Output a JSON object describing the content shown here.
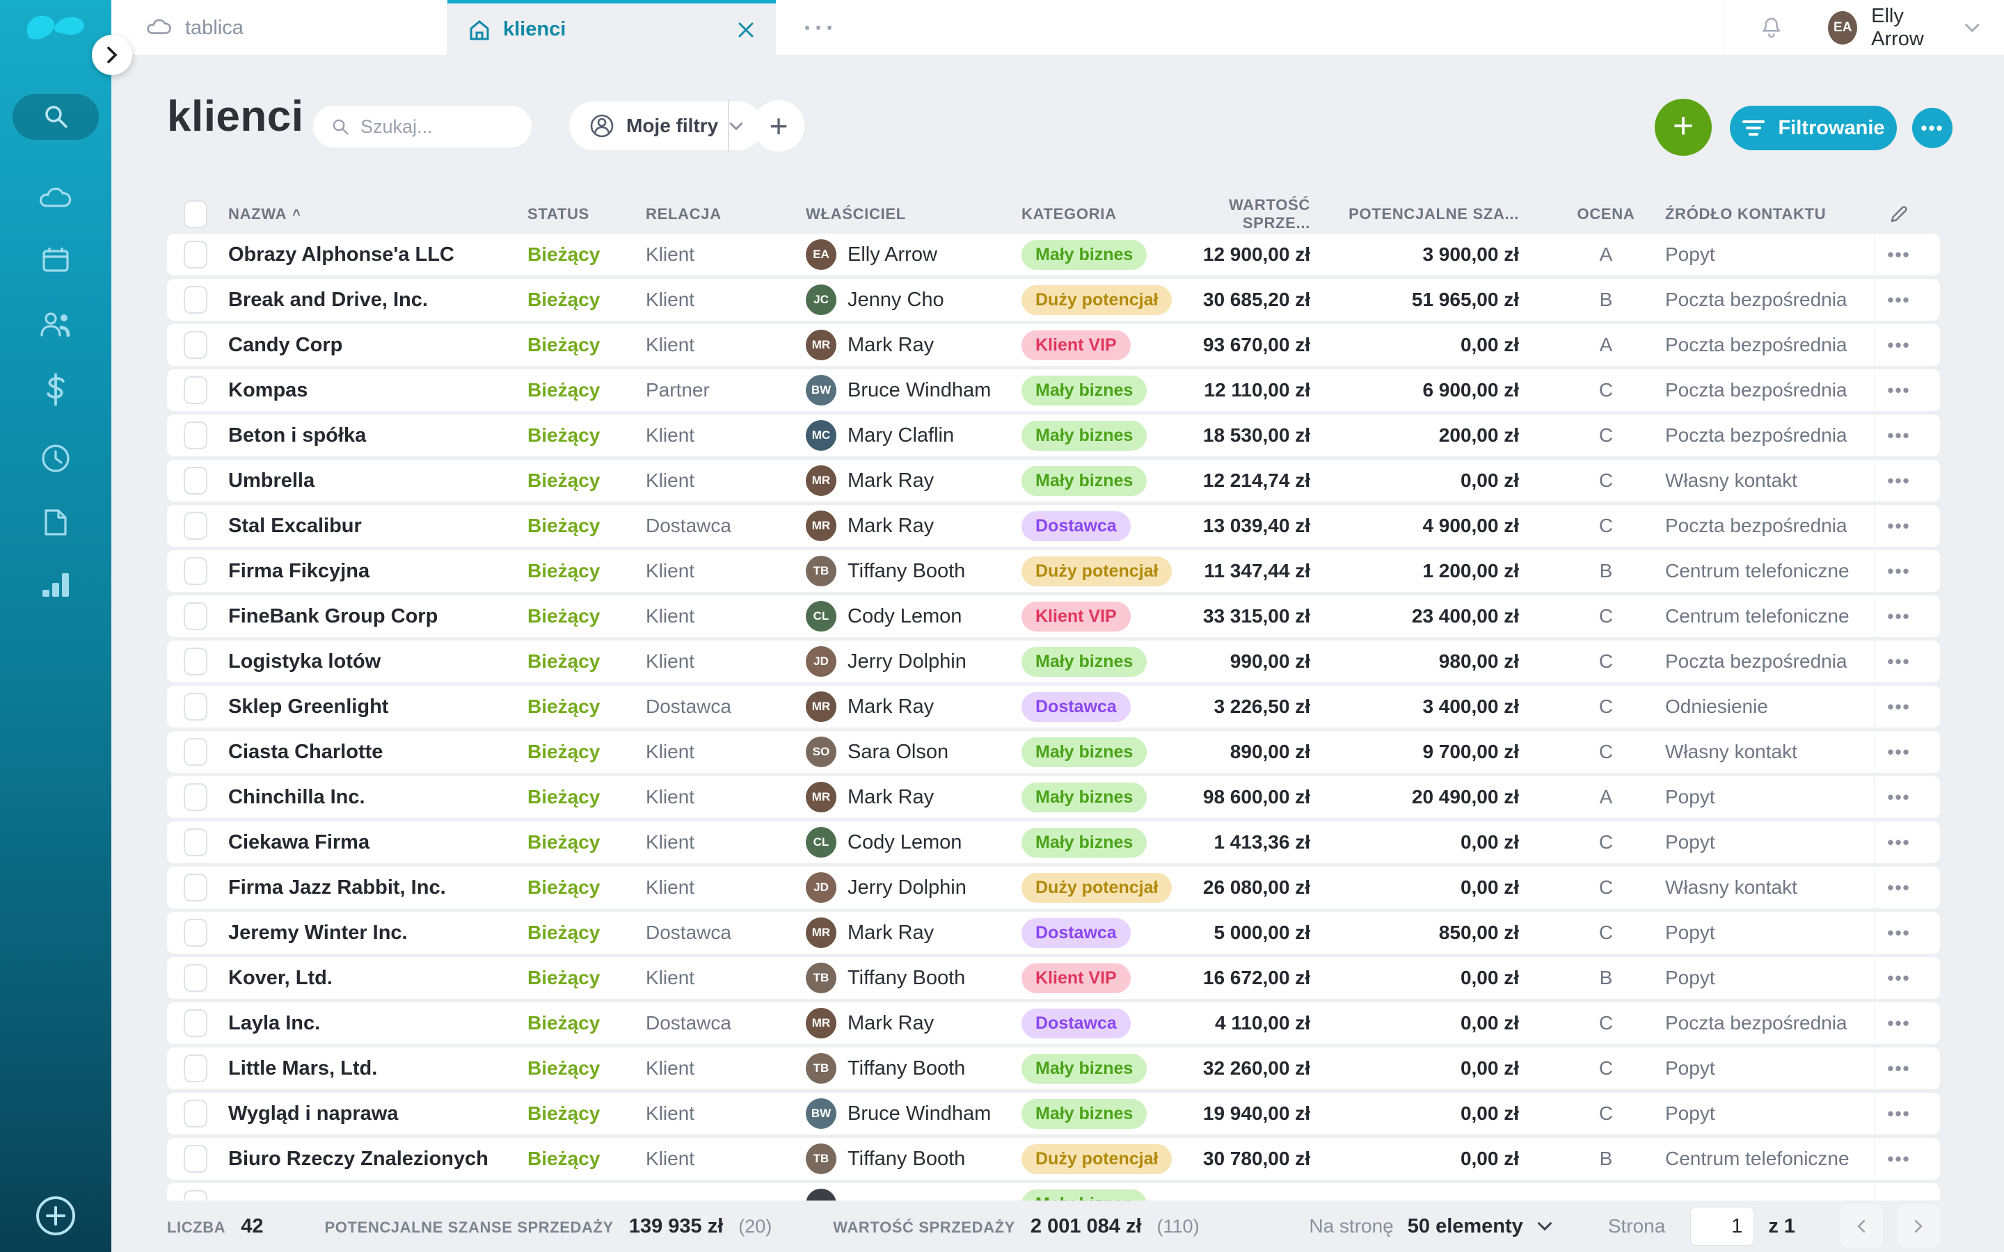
{
  "sidebar": {
    "logo": "livespace-logo",
    "icons": [
      "search-icon",
      "cloud-icon",
      "calendar-icon",
      "people-icon",
      "dollar-icon",
      "clock-icon",
      "document-icon",
      "bar-chart-icon",
      "plus-circle-icon"
    ],
    "active_icon": "search-icon"
  },
  "tabbar": {
    "tabs": [
      {
        "icon": "cloud-icon",
        "label": "tablica",
        "active": false
      },
      {
        "icon": "home-icon",
        "label": "klienci",
        "active": true
      }
    ],
    "more": "···",
    "user": {
      "name": "Elly Arrow",
      "initials": "EA"
    }
  },
  "header": {
    "title": "klienci",
    "search_placeholder": "Szukaj...",
    "my_filters_label": "Moje filtry",
    "add_view_label": "+",
    "add_label": "+",
    "filter_button_label": "Filtrowanie",
    "more_label": "•••",
    "colors": {
      "add_green": "#5ca414",
      "accent_cyan": "#17a7cc"
    }
  },
  "table": {
    "columns": [
      "Nazwa",
      "Status",
      "Relacja",
      "Właściciel",
      "Kategoria",
      "Wartość sprze...",
      "Potencjalne sza...",
      "Ocena",
      "Źródło kontaktu"
    ],
    "sorted_column": "Nazwa",
    "badge_colors": {
      "maly": {
        "bg": "#cdf2bf",
        "text": "#4aa318"
      },
      "duzy": {
        "bg": "#f8e3b4",
        "text": "#b18a0a"
      },
      "vip": {
        "bg": "#fbc9d3",
        "text": "#e03560"
      },
      "dostawca": {
        "bg": "#e7d4fe",
        "text": "#8b46f0"
      }
    },
    "status_color": "#74ab1c",
    "rows": [
      {
        "name": "Obrazy Alphonse'a LLC",
        "status": "Bieżący",
        "relation": "Klient",
        "owner": "Elly Arrow",
        "category": "Mały biznes",
        "category_type": "maly",
        "value": "12 900,00 zł",
        "potential": "3 900,00 zł",
        "grade": "A",
        "source": "Popyt"
      },
      {
        "name": "Break and Drive, Inc.",
        "status": "Bieżący",
        "relation": "Klient",
        "owner": "Jenny Cho",
        "category": "Duży potencjał",
        "category_type": "duzy",
        "value": "30 685,20 zł",
        "potential": "51 965,00 zł",
        "grade": "B",
        "source": "Poczta bezpośrednia"
      },
      {
        "name": "Candy Corp",
        "status": "Bieżący",
        "relation": "Klient",
        "owner": "Mark Ray",
        "category": "Klient VIP",
        "category_type": "vip",
        "value": "93 670,00 zł",
        "potential": "0,00 zł",
        "grade": "A",
        "source": "Poczta bezpośrednia"
      },
      {
        "name": "Kompas",
        "status": "Bieżący",
        "relation": "Partner",
        "owner": "Bruce Windham",
        "category": "Mały biznes",
        "category_type": "maly",
        "value": "12 110,00 zł",
        "potential": "6 900,00 zł",
        "grade": "C",
        "source": "Poczta bezpośrednia"
      },
      {
        "name": "Beton i spółka",
        "status": "Bieżący",
        "relation": "Klient",
        "owner": "Mary Claflin",
        "category": "Mały biznes",
        "category_type": "maly",
        "value": "18 530,00 zł",
        "potential": "200,00 zł",
        "grade": "C",
        "source": "Poczta bezpośrednia"
      },
      {
        "name": "Umbrella",
        "status": "Bieżący",
        "relation": "Klient",
        "owner": "Mark Ray",
        "category": "Mały biznes",
        "category_type": "maly",
        "value": "12 214,74 zł",
        "potential": "0,00 zł",
        "grade": "C",
        "source": "Własny kontakt"
      },
      {
        "name": "Stal Excalibur",
        "status": "Bieżący",
        "relation": "Dostawca",
        "owner": "Mark Ray",
        "category": "Dostawca",
        "category_type": "dostawca",
        "value": "13 039,40 zł",
        "potential": "4 900,00 zł",
        "grade": "C",
        "source": "Poczta bezpośrednia"
      },
      {
        "name": "Firma Fikcyjna",
        "status": "Bieżący",
        "relation": "Klient",
        "owner": "Tiffany Booth",
        "category": "Duży potencjał",
        "category_type": "duzy",
        "value": "11 347,44 zł",
        "potential": "1 200,00 zł",
        "grade": "B",
        "source": "Centrum telefoniczne"
      },
      {
        "name": "FineBank Group Corp",
        "status": "Bieżący",
        "relation": "Klient",
        "owner": "Cody Lemon",
        "category": "Klient VIP",
        "category_type": "vip",
        "value": "33 315,00 zł",
        "potential": "23 400,00 zł",
        "grade": "C",
        "source": "Centrum telefoniczne"
      },
      {
        "name": "Logistyka lotów",
        "status": "Bieżący",
        "relation": "Klient",
        "owner": "Jerry Dolphin",
        "category": "Mały biznes",
        "category_type": "maly",
        "value": "990,00 zł",
        "potential": "980,00 zł",
        "grade": "C",
        "source": "Poczta bezpośrednia"
      },
      {
        "name": "Sklep Greenlight",
        "status": "Bieżący",
        "relation": "Dostawca",
        "owner": "Mark Ray",
        "category": "Dostawca",
        "category_type": "dostawca",
        "value": "3 226,50 zł",
        "potential": "3 400,00 zł",
        "grade": "C",
        "source": "Odniesienie"
      },
      {
        "name": "Ciasta Charlotte",
        "status": "Bieżący",
        "relation": "Klient",
        "owner": "Sara Olson",
        "category": "Mały biznes",
        "category_type": "maly",
        "value": "890,00 zł",
        "potential": "9 700,00 zł",
        "grade": "C",
        "source": "Własny kontakt"
      },
      {
        "name": "Chinchilla Inc.",
        "status": "Bieżący",
        "relation": "Klient",
        "owner": "Mark Ray",
        "category": "Mały biznes",
        "category_type": "maly",
        "value": "98 600,00 zł",
        "potential": "20 490,00 zł",
        "grade": "A",
        "source": "Popyt"
      },
      {
        "name": "Ciekawa Firma",
        "status": "Bieżący",
        "relation": "Klient",
        "owner": "Cody Lemon",
        "category": "Mały biznes",
        "category_type": "maly",
        "value": "1 413,36 zł",
        "potential": "0,00 zł",
        "grade": "C",
        "source": "Popyt"
      },
      {
        "name": "Firma Jazz Rabbit, Inc.",
        "status": "Bieżący",
        "relation": "Klient",
        "owner": "Jerry Dolphin",
        "category": "Duży potencjał",
        "category_type": "duzy",
        "value": "26 080,00 zł",
        "potential": "0,00 zł",
        "grade": "C",
        "source": "Własny kontakt"
      },
      {
        "name": "Jeremy Winter Inc.",
        "status": "Bieżący",
        "relation": "Dostawca",
        "owner": "Mark Ray",
        "category": "Dostawca",
        "category_type": "dostawca",
        "value": "5 000,00 zł",
        "potential": "850,00 zł",
        "grade": "C",
        "source": "Popyt"
      },
      {
        "name": "Kover, Ltd.",
        "status": "Bieżący",
        "relation": "Klient",
        "owner": "Tiffany Booth",
        "category": "Klient VIP",
        "category_type": "vip",
        "value": "16 672,00 zł",
        "potential": "0,00 zł",
        "grade": "B",
        "source": "Popyt"
      },
      {
        "name": "Layla Inc.",
        "status": "Bieżący",
        "relation": "Dostawca",
        "owner": "Mark Ray",
        "category": "Dostawca",
        "category_type": "dostawca",
        "value": "4 110,00 zł",
        "potential": "0,00 zł",
        "grade": "C",
        "source": "Poczta bezpośrednia"
      },
      {
        "name": "Little Mars, Ltd.",
        "status": "Bieżący",
        "relation": "Klient",
        "owner": "Tiffany Booth",
        "category": "Mały biznes",
        "category_type": "maly",
        "value": "32 260,00 zł",
        "potential": "0,00 zł",
        "grade": "C",
        "source": "Popyt"
      },
      {
        "name": "Wygląd i naprawa",
        "status": "Bieżący",
        "relation": "Klient",
        "owner": "Bruce Windham",
        "category": "Mały biznes",
        "category_type": "maly",
        "value": "19 940,00 zł",
        "potential": "0,00 zł",
        "grade": "C",
        "source": "Popyt"
      },
      {
        "name": "Biuro Rzeczy Znalezionych",
        "status": "Bieżący",
        "relation": "Klient",
        "owner": "Tiffany Booth",
        "category": "Duży potencjał",
        "category_type": "duzy",
        "value": "30 780,00 zł",
        "potential": "0,00 zł",
        "grade": "B",
        "source": "Centrum telefoniczne"
      }
    ],
    "partial_row": {
      "name": "",
      "status": "",
      "relation": "",
      "owner": "",
      "category": "Mały biznes",
      "category_type": "maly",
      "value": "",
      "potential": "",
      "grade": "",
      "source": ""
    }
  },
  "footer": {
    "stats": [
      {
        "label": "Liczba",
        "value": "42",
        "note": ""
      },
      {
        "label": "Potencjalne szanse sprzedaży",
        "value": "139 935 zł",
        "note": "(20)"
      },
      {
        "label": "Wartość sprzedaży",
        "value": "2 001 084 zł",
        "note": "(110)"
      }
    ],
    "pagination": {
      "per_page_label": "Na stronę",
      "per_page_value": "50 elementy",
      "page_label": "Strona",
      "page": "1",
      "of_label": "z 1"
    }
  }
}
